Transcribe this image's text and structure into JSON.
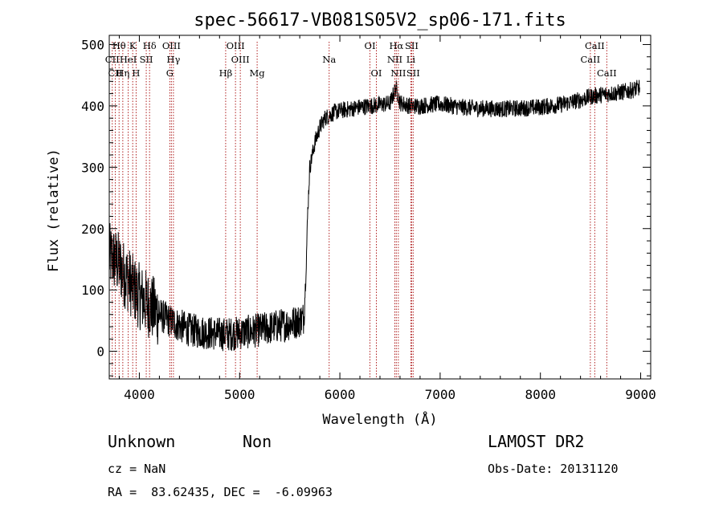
{
  "chart_data": {
    "type": "line",
    "title": "spec-56617-VB081S05V2_sp06-171.fits",
    "xlabel": "Wavelength (Å)",
    "ylabel": "Flux (relative)",
    "xlim": [
      3700,
      9100
    ],
    "ylim": [
      -45,
      515
    ],
    "xticks": [
      4000,
      5000,
      6000,
      7000,
      8000,
      9000
    ],
    "yticks": [
      0,
      100,
      200,
      300,
      400,
      500
    ],
    "grid": false,
    "series": [
      {
        "x": [
          3700,
          3750,
          3800,
          3850,
          3900,
          3950,
          4000,
          4100,
          4200,
          4300,
          4400,
          4500,
          4600,
          4700,
          4800,
          4900,
          5000,
          5100,
          5200,
          5300,
          5400,
          5500,
          5600,
          5640,
          5660,
          5680,
          5700,
          5750,
          5800,
          5850,
          5900,
          5950,
          6000,
          6100,
          6200,
          6300,
          6400,
          6500,
          6560,
          6600,
          6700,
          6800,
          6900,
          7000,
          7200,
          7400,
          7600,
          7800,
          8000,
          8200,
          8400,
          8500,
          8600,
          8700,
          8800,
          8900,
          8990
        ],
        "y": [
          155,
          150,
          140,
          125,
          115,
          100,
          90,
          75,
          60,
          50,
          42,
          35,
          32,
          30,
          28,
          28,
          30,
          32,
          35,
          38,
          42,
          45,
          50,
          55,
          120,
          230,
          300,
          340,
          365,
          380,
          385,
          390,
          392,
          395,
          398,
          400,
          402,
          404,
          430,
          405,
          400,
          400,
          402,
          403,
          398,
          396,
          395,
          396,
          398,
          402,
          410,
          415,
          418,
          420,
          422,
          425,
          430
        ]
      }
    ],
    "lines": [
      {
        "label": "CII",
        "x": 3730,
        "row": 1
      },
      {
        "label": "Hθ",
        "x": 3798,
        "row": 0
      },
      {
        "label": "CII",
        "x": 3760,
        "row": 2
      },
      {
        "label": "Hη",
        "x": 3835,
        "row": 2
      },
      {
        "label": "HeI",
        "x": 3889,
        "row": 1
      },
      {
        "label": "K",
        "x": 3934,
        "row": 0
      },
      {
        "label": "H",
        "x": 3968,
        "row": 2
      },
      {
        "label": "SII",
        "x": 4069,
        "row": 1
      },
      {
        "label": "Hδ",
        "x": 4102,
        "row": 0
      },
      {
        "label": "OIII",
        "x": 4320,
        "row": 0
      },
      {
        "label": "Hγ",
        "x": 4340,
        "row": 1
      },
      {
        "label": "G",
        "x": 4304,
        "row": 2
      },
      {
        "label": "OIII",
        "x": 4959,
        "row": 0
      },
      {
        "label": "OIII",
        "x": 5007,
        "row": 1
      },
      {
        "label": "Hβ",
        "x": 4861,
        "row": 2
      },
      {
        "label": "Mg",
        "x": 5175,
        "row": 2
      },
      {
        "label": "Na",
        "x": 5893,
        "row": 1
      },
      {
        "label": "OI",
        "x": 6300,
        "row": 0
      },
      {
        "label": "OI",
        "x": 6364,
        "row": 2
      },
      {
        "label": "Hα",
        "x": 6563,
        "row": 0
      },
      {
        "label": "NII",
        "x": 6548,
        "row": 1
      },
      {
        "label": "NII",
        "x": 6583,
        "row": 2
      },
      {
        "label": "SII",
        "x": 6716,
        "row": 0
      },
      {
        "label": "Li",
        "x": 6708,
        "row": 1
      },
      {
        "label": "SII",
        "x": 6731,
        "row": 2
      },
      {
        "label": "CaII",
        "x": 8542,
        "row": 0
      },
      {
        "label": "CaII",
        "x": 8498,
        "row": 1
      },
      {
        "label": "CaII",
        "x": 8662,
        "row": 2
      }
    ]
  },
  "info": {
    "class_label": "Unknown",
    "subclass_label": "Non",
    "survey": "LAMOST DR2",
    "cz": "cz = NaN",
    "obs_date": "Obs-Date: 20131120",
    "coords": "RA =  83.62435, DEC =  -6.09963"
  }
}
